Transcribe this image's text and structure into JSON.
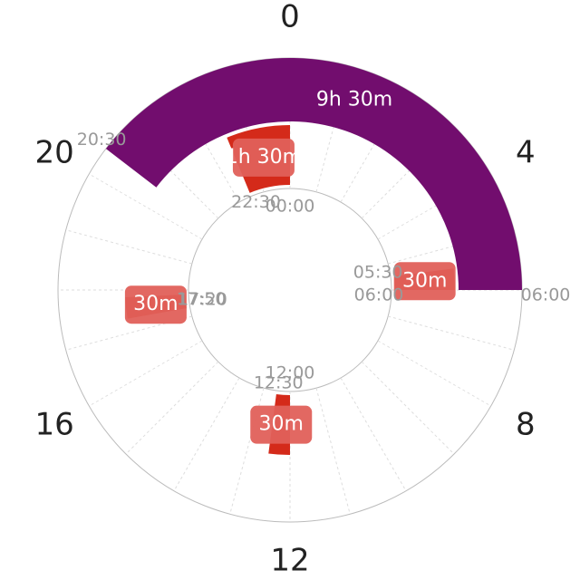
{
  "chart_data": {
    "type": "radial-timeline",
    "thetalim": [
      0,
      24
    ],
    "hour_ticks": [
      0,
      4,
      8,
      12,
      16,
      20
    ],
    "outer": [
      {
        "start": "20:30",
        "end": "06:00",
        "label": "9h 30m",
        "color": "#720d6e"
      }
    ],
    "inner": [
      {
        "start": "22:30",
        "end": "00:00",
        "label": "1h 30m",
        "color": "#d42a1a"
      },
      {
        "start": "05:30",
        "end": "06:00",
        "label": "30m",
        "color": "#d42a1a"
      },
      {
        "start": "12:00",
        "end": "12:30",
        "label": "30m",
        "color": "#d42a1a"
      },
      {
        "start": "17:20",
        "end": "17:50",
        "label": "30m",
        "color": "#d42a1a"
      }
    ]
  }
}
